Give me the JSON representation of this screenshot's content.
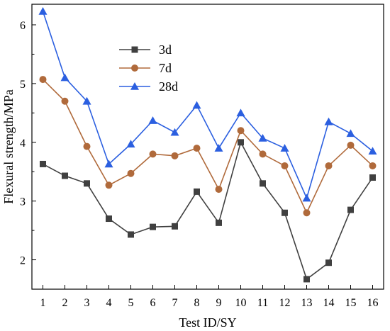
{
  "chart_data": {
    "type": "line",
    "x": [
      1,
      2,
      3,
      4,
      5,
      6,
      7,
      8,
      9,
      10,
      11,
      12,
      13,
      14,
      15,
      16
    ],
    "xlabel": "Test ID/SY",
    "ylabel": "Flexural strength/MPa",
    "xlim": [
      0.5,
      16.5
    ],
    "ylim": [
      1.5,
      6.35
    ],
    "yticks": [
      2,
      3,
      4,
      5,
      6
    ],
    "grid": false,
    "legend_position": "top-left",
    "series": [
      {
        "name": "3d",
        "color": "#404040",
        "marker": "square",
        "values": [
          3.63,
          3.43,
          3.3,
          2.7,
          2.43,
          2.56,
          2.57,
          3.16,
          2.63,
          4.0,
          3.3,
          2.8,
          1.67,
          1.95,
          2.85,
          3.4
        ]
      },
      {
        "name": "7d",
        "color": "#B06A3B",
        "marker": "circle",
        "values": [
          5.07,
          4.7,
          3.93,
          3.27,
          3.47,
          3.8,
          3.77,
          3.9,
          3.2,
          4.2,
          3.8,
          3.6,
          2.8,
          3.6,
          3.95,
          3.6
        ]
      },
      {
        "name": "28d",
        "color": "#2B5FE0",
        "marker": "triangle",
        "values": [
          6.23,
          5.1,
          4.7,
          3.63,
          3.97,
          4.37,
          4.17,
          4.63,
          3.9,
          4.5,
          4.07,
          3.9,
          3.05,
          4.35,
          4.15,
          3.85
        ]
      }
    ]
  }
}
